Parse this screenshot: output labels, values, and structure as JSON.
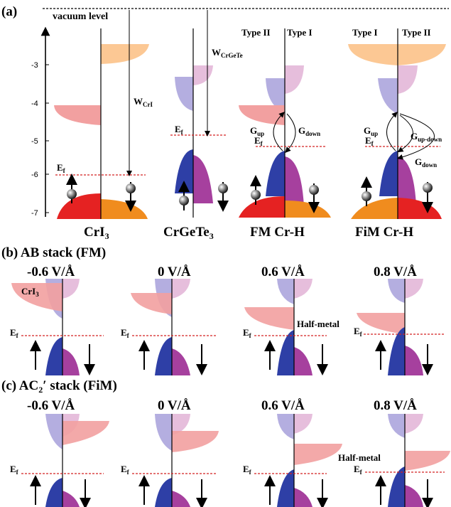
{
  "panel_a": {
    "label": "(a)",
    "vacuum_label": "vacuum level",
    "y_ticks": [
      "-3",
      "-4",
      "-5",
      "-6",
      "-7"
    ],
    "w_cri": "W",
    "w_cri_sub": "CrI",
    "w_crgete": "W",
    "w_crgete_sub": "CrGeTe",
    "ef": "E",
    "ef_sub": "f",
    "g_up": "G",
    "g_up_sub": "up",
    "g_down": "G",
    "g_down_sub": "down",
    "g_updown_sub": "up-down",
    "type_ii": "Type II",
    "type_i": "Type I",
    "names": {
      "cri3": "CrI",
      "cri3_sub": "3",
      "crgete3": "CrGeTe",
      "crgete3_sub": "3",
      "fm": "FM Cr-H",
      "fim": "FiM Cr-H"
    }
  },
  "panel_b": {
    "label": "(b) AB stack (FM)",
    "fields": [
      "-0.6 V/Å",
      "0 V/Å",
      "0.6 V/Å",
      "0.8 V/Å"
    ],
    "cri3_tag": "CrI",
    "cri3_tag_sub": "3",
    "half_metal": "Half-metal"
  },
  "panel_c": {
    "label": "(c) AC",
    "label_sub": "2",
    "label_rest": "′ stack (FiM)",
    "fields": [
      "-0.6 V/Å",
      "0 V/Å",
      "0.6 V/Å",
      "0.8 V/Å"
    ],
    "half_metal": "Half-metal"
  },
  "colors": {
    "red_band": "#e52222",
    "orange_band": "#f08c1e",
    "peach_band": "#fcc894",
    "pink_band": "#f2a0a0",
    "lavender_band": "#b4aee0",
    "light_pink_band": "#e6bedc",
    "blue_band": "#2e3fa6",
    "purple_band": "#a6409e",
    "ef_line": "#d42020"
  }
}
